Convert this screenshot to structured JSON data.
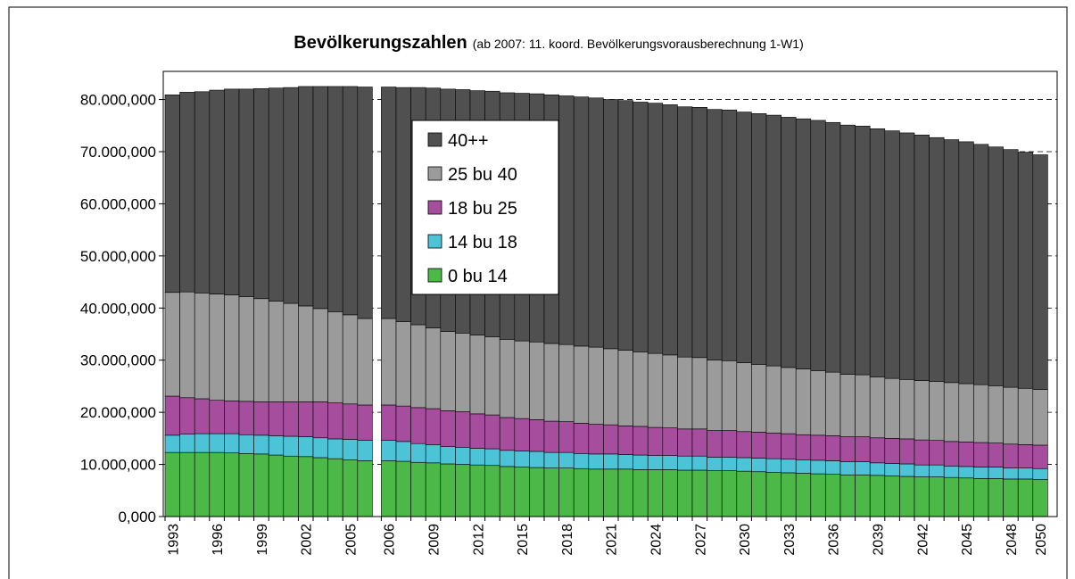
{
  "chart_data": {
    "type": "stacked_bar",
    "title": "Bevölkerungszahlen",
    "subtitle": "(ab 2007:  11. koord. Bevölkerungsvorausberechnung 1-W1)",
    "categories": [
      "1993",
      null,
      null,
      "1996",
      null,
      null,
      "1999",
      null,
      null,
      "2002",
      null,
      null,
      "2005",
      null,
      "2006",
      null,
      null,
      "2009",
      null,
      null,
      "2012",
      null,
      null,
      "2015",
      null,
      null,
      "2018",
      null,
      null,
      "2021",
      null,
      null,
      "2024",
      null,
      null,
      "2027",
      null,
      null,
      "2030",
      null,
      null,
      "2033",
      null,
      null,
      "2036",
      null,
      null,
      "2039",
      null,
      null,
      "2042",
      null,
      null,
      "2045",
      null,
      null,
      "2048",
      null,
      "2050"
    ],
    "series": [
      {
        "name": "0 bu 14",
        "color": "#4cb848",
        "values": [
          12300000,
          12300000,
          12300000,
          12300000,
          12200000,
          12100000,
          12000000,
          11800000,
          11600000,
          11500000,
          11300000,
          11100000,
          10900000,
          10700000,
          10700000,
          10600000,
          10400000,
          10300000,
          10100000,
          10000000,
          9900000,
          9800000,
          9600000,
          9500000,
          9400000,
          9300000,
          9300000,
          9200000,
          9100000,
          9100000,
          9100000,
          9000000,
          9000000,
          9000000,
          8900000,
          8900000,
          8800000,
          8800000,
          8700000,
          8600000,
          8500000,
          8400000,
          8300000,
          8200000,
          8100000,
          8000000,
          8000000,
          7900000,
          7800000,
          7700000,
          7600000,
          7600000,
          7500000,
          7400000,
          7300000,
          7300000,
          7200000,
          7200000,
          7100000
        ]
      },
      {
        "name": "14 bu 18",
        "color": "#4dc3d8",
        "values": [
          3300000,
          3500000,
          3600000,
          3600000,
          3700000,
          3600000,
          3600000,
          3700000,
          3800000,
          3800000,
          3800000,
          3800000,
          3900000,
          3900000,
          3900000,
          3800000,
          3600000,
          3500000,
          3300000,
          3300000,
          3200000,
          3200000,
          3100000,
          3100000,
          3100000,
          3000000,
          3000000,
          2900000,
          2900000,
          2900000,
          2800000,
          2800000,
          2700000,
          2700000,
          2700000,
          2700000,
          2600000,
          2600000,
          2600000,
          2600000,
          2600000,
          2600000,
          2600000,
          2600000,
          2600000,
          2500000,
          2500000,
          2400000,
          2400000,
          2400000,
          2300000,
          2300000,
          2200000,
          2200000,
          2200000,
          2200000,
          2100000,
          2100000,
          2100000
        ]
      },
      {
        "name": "18 bu 25",
        "color": "#a64d9e",
        "values": [
          7500000,
          7000000,
          6700000,
          6400000,
          6300000,
          6400000,
          6400000,
          6500000,
          6600000,
          6700000,
          6900000,
          6900000,
          6800000,
          6800000,
          6800000,
          6800000,
          6900000,
          6900000,
          6900000,
          6800000,
          6600000,
          6500000,
          6300000,
          6200000,
          6100000,
          6000000,
          5900000,
          5800000,
          5700000,
          5600000,
          5500000,
          5500000,
          5400000,
          5300000,
          5200000,
          5200000,
          5100000,
          5100000,
          5000000,
          5000000,
          4900000,
          4900000,
          4800000,
          4800000,
          4800000,
          4800000,
          4800000,
          4800000,
          4800000,
          4800000,
          4800000,
          4700000,
          4700000,
          4700000,
          4700000,
          4600000,
          4600000,
          4500000,
          4500000
        ]
      },
      {
        "name": "25 bu 40",
        "color": "#9b9b9b",
        "values": [
          19900000,
          20300000,
          20300000,
          20400000,
          20300000,
          20100000,
          19800000,
          19300000,
          18900000,
          18400000,
          17900000,
          17500000,
          17100000,
          16600000,
          16600000,
          16200000,
          15900000,
          15500000,
          15200000,
          15100000,
          15100000,
          15000000,
          15000000,
          14900000,
          14900000,
          14900000,
          14800000,
          14800000,
          14800000,
          14600000,
          14500000,
          14300000,
          14200000,
          14000000,
          13800000,
          13700000,
          13500000,
          13400000,
          13200000,
          13000000,
          12900000,
          12700000,
          12600000,
          12400000,
          12200000,
          12000000,
          11900000,
          11700000,
          11500000,
          11400000,
          11400000,
          11300000,
          11300000,
          11200000,
          11100000,
          11000000,
          10900000,
          10800000,
          10700000
        ]
      },
      {
        "name": "40++",
        "color": "#505050",
        "values": [
          37900000,
          38300000,
          38600000,
          39100000,
          39500000,
          39800000,
          40300000,
          40900000,
          41400000,
          42100000,
          42600000,
          43200000,
          43800000,
          44400000,
          44400000,
          44900000,
          45500000,
          46000000,
          46500000,
          46700000,
          46900000,
          47100000,
          47300000,
          47500000,
          47600000,
          47700000,
          47700000,
          47800000,
          47800000,
          47800000,
          47900000,
          47900000,
          48000000,
          48000000,
          48000000,
          48000000,
          48100000,
          48100000,
          48100000,
          48100000,
          48100000,
          48000000,
          48000000,
          48000000,
          47900000,
          47800000,
          47700000,
          47600000,
          47500000,
          47300000,
          47100000,
          46800000,
          46600000,
          46400000,
          46100000,
          45800000,
          45600000,
          45300000,
          45000000
        ]
      }
    ],
    "ylim": [
      0,
      85400000
    ],
    "yticks": [
      {
        "value": 0,
        "label": "0,000"
      },
      {
        "value": 10000000,
        "label": "10.000,000"
      },
      {
        "value": 20000000,
        "label": "20.000,000"
      },
      {
        "value": 30000000,
        "label": "30.000,000"
      },
      {
        "value": 40000000,
        "label": "40.000,000"
      },
      {
        "value": 50000000,
        "label": "50.000,000"
      },
      {
        "value": 60000000,
        "label": "60.000,000"
      },
      {
        "value": 70000000,
        "label": "70.000,000"
      },
      {
        "value": 80000000,
        "label": "80.000,000"
      }
    ],
    "grid": true,
    "legend": "upper left"
  }
}
